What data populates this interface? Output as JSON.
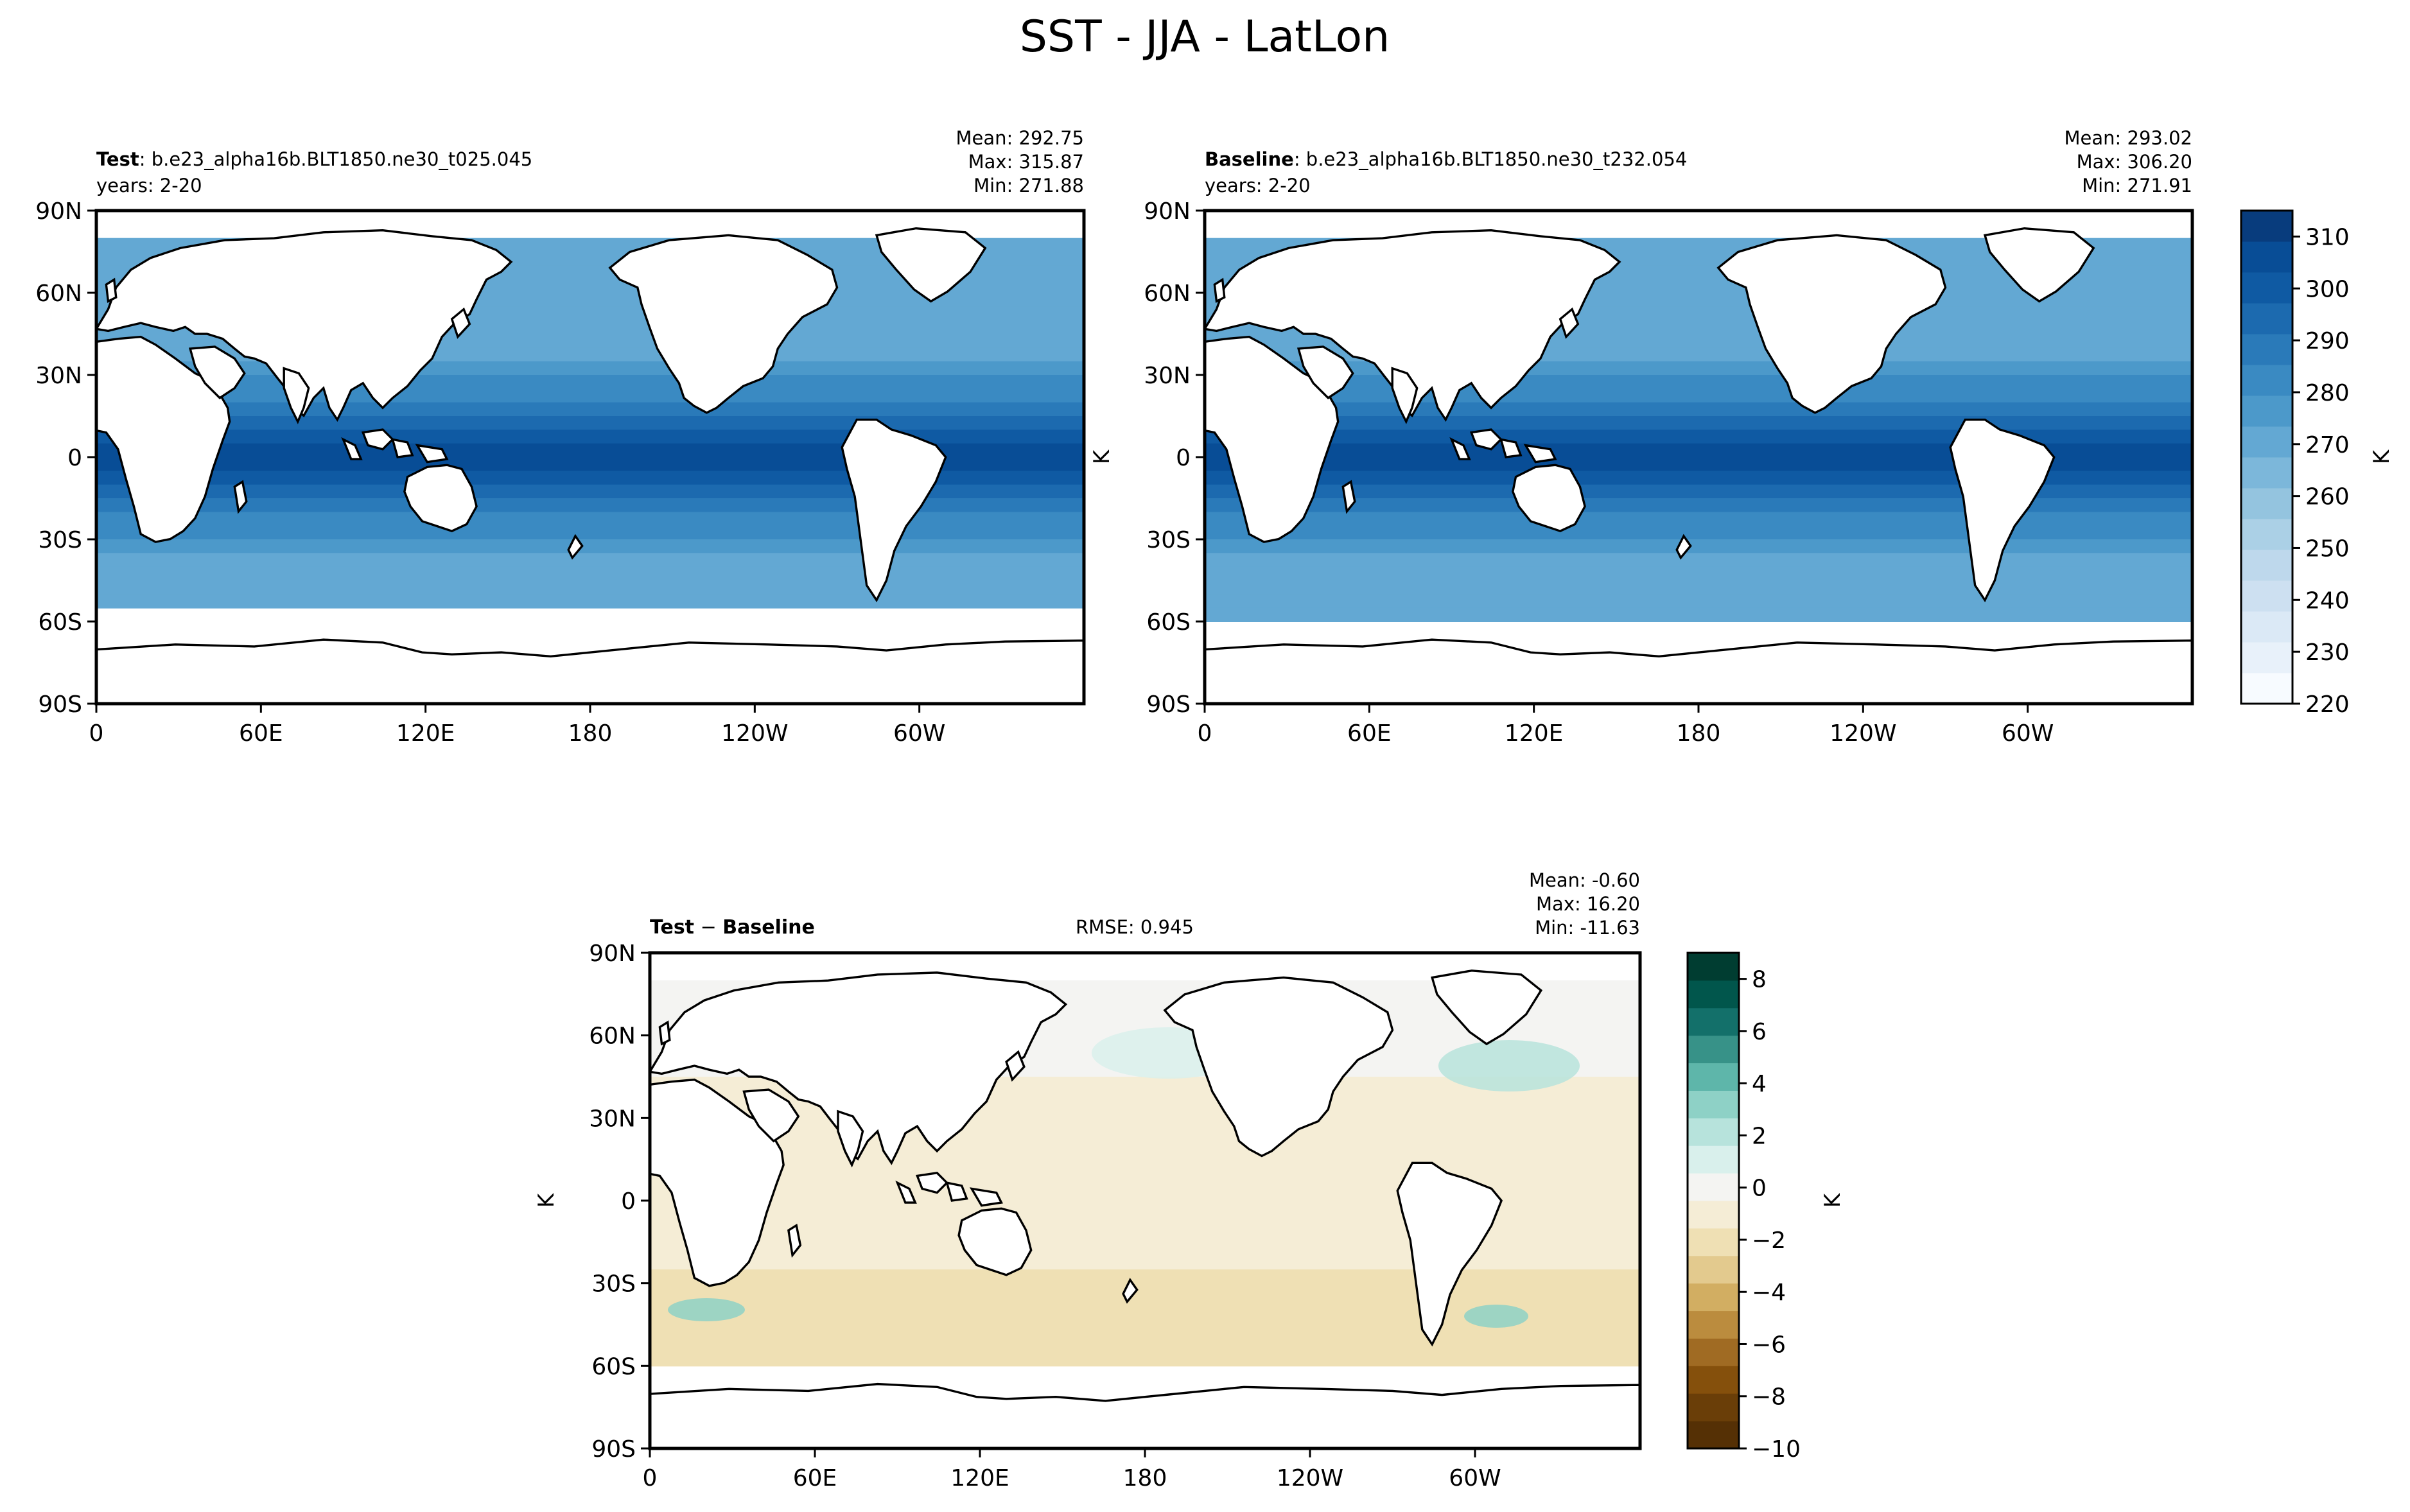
{
  "figure": {
    "title": "SST - JJA - LatLon"
  },
  "colors": {
    "ocean_seq": [
      "#f7fbff",
      "#e8f1fa",
      "#dbe9f6",
      "#cde0f1",
      "#bed8ec",
      "#abd0e6",
      "#94c4df",
      "#7cb7da",
      "#63a8d3",
      "#4c99ca",
      "#3a8ac2",
      "#2a7ab9",
      "#1c6aaf",
      "#0f5aa3",
      "#084d96",
      "#083c7d"
    ],
    "diff_div": [
      "#553005",
      "#6a3e08",
      "#85500c",
      "#a06b23",
      "#bb8c3e",
      "#d2ae62",
      "#e3ca8e",
      "#efe0b4",
      "#f5edd6",
      "#f4f4f2",
      "#d9f0ec",
      "#b7e3dc",
      "#8ed1c6",
      "#5eb6aa",
      "#379288",
      "#13706a",
      "#01564c",
      "#003d31"
    ],
    "land": "#ffffff",
    "coast": "#000000"
  },
  "chart_data": [
    {
      "type": "heatmap",
      "panel": "test",
      "label_bold": "Test",
      "label_rest": ": b.e23_alpha16b.BLT1850.ne30_t025.045",
      "subtitle": "years: 2-20",
      "stats": [
        "Mean: 292.75",
        "Max: 315.87",
        "Min: 271.88"
      ],
      "xticks": [
        "0",
        "60E",
        "120E",
        "180",
        "120W",
        "60W"
      ],
      "yticks": [
        "90N",
        "60N",
        "30N",
        "0",
        "30S",
        "60S",
        "90S"
      ],
      "ylabel": "",
      "ice_edge_south_lat": -57,
      "pattern": {
        "equator_value": 300,
        "pole_value": 272
      }
    },
    {
      "type": "heatmap",
      "panel": "baseline",
      "label_bold": "Baseline",
      "label_rest": ": b.e23_alpha16b.BLT1850.ne30_t232.054",
      "subtitle": "years: 2-20",
      "stats": [
        "Mean: 293.02",
        "Max: 306.20",
        "Min: 271.91"
      ],
      "xticks": [
        "0",
        "60E",
        "120E",
        "180",
        "120W",
        "60W"
      ],
      "yticks": [
        "90N",
        "60N",
        "30N",
        "0",
        "30S",
        "60S",
        "90S"
      ],
      "ylabel": "K",
      "ice_edge_south_lat": -60,
      "pattern": {
        "equator_value": 300,
        "pole_value": 272
      },
      "colorbar": {
        "label": "K",
        "ticks": [
          "220",
          "230",
          "240",
          "250",
          "260",
          "270",
          "280",
          "290",
          "300",
          "310"
        ],
        "range": [
          220,
          315
        ]
      }
    },
    {
      "type": "heatmap",
      "panel": "difference",
      "label_bold_a": "Test",
      "label_minus": " − ",
      "label_bold_b": "Baseline",
      "rmse": "RMSE: 0.945",
      "stats": [
        "Mean: -0.60",
        "Max: 16.20",
        "Min: -11.63"
      ],
      "xticks": [
        "0",
        "60E",
        "120E",
        "180",
        "120W",
        "60W"
      ],
      "yticks": [
        "90N",
        "60N",
        "30N",
        "0",
        "30S",
        "60S",
        "90S"
      ],
      "ylabel": "K",
      "pattern": {
        "tropics": -0.5,
        "southern_ocean": -2.5,
        "north_atlantic": 1.5
      },
      "colorbar": {
        "label": "K",
        "ticks": [
          "8",
          "6",
          "4",
          "2",
          "0",
          "−2",
          "−4",
          "−6",
          "−8",
          "−10"
        ],
        "range": [
          -10,
          9
        ]
      }
    }
  ]
}
